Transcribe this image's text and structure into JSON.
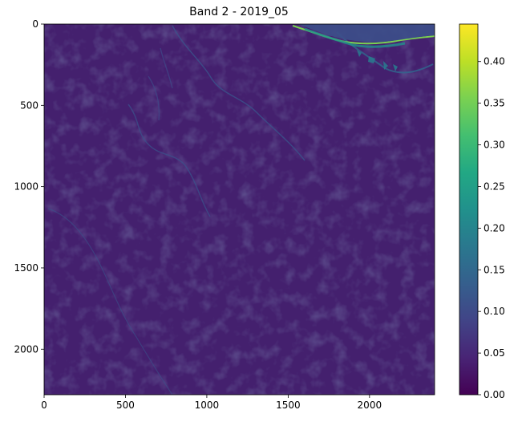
{
  "chart_data": {
    "type": "heatmap",
    "title": "Band 2 - 2019_05",
    "xlabel": "",
    "ylabel": "",
    "x_ticks": [
      0,
      500,
      1000,
      1500,
      2000
    ],
    "y_ticks": [
      0,
      500,
      1000,
      1500,
      2000
    ],
    "xlim": [
      0,
      2400
    ],
    "ylim": [
      2280,
      0
    ],
    "colormap": "viridis",
    "colorbar": {
      "min": 0.0,
      "max": 0.445,
      "ticks": [
        "0.00",
        "0.05",
        "0.10",
        "0.15",
        "0.20",
        "0.25",
        "0.30",
        "0.35",
        "0.40"
      ],
      "tick_values": [
        0.0,
        0.05,
        0.1,
        0.15,
        0.2,
        0.25,
        0.3,
        0.35,
        0.4
      ]
    },
    "dominant_value": 0.045,
    "colors": {
      "background": "#45206f",
      "river": "#3e4a89",
      "coast_bright": "#7ad151",
      "coast_teal": "#21918c"
    }
  }
}
